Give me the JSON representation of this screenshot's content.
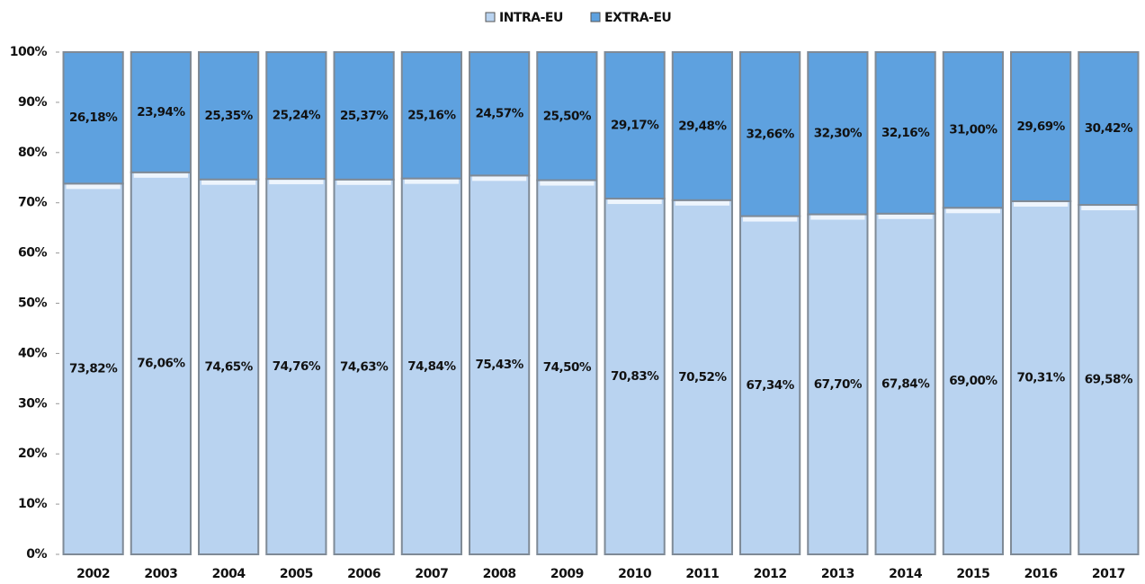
{
  "chart_data": {
    "type": "stacked_bar",
    "categories": [
      "2002",
      "2003",
      "2004",
      "2005",
      "2006",
      "2007",
      "2008",
      "2009",
      "2010",
      "2011",
      "2012",
      "2013",
      "2014",
      "2015",
      "2016",
      "2017"
    ],
    "series": [
      {
        "name": "INTRA-EU",
        "color": "#b9d3f0",
        "values": [
          73.82,
          76.06,
          74.65,
          74.76,
          74.63,
          74.84,
          75.43,
          74.5,
          70.83,
          70.52,
          67.34,
          67.7,
          67.84,
          69.0,
          70.31,
          69.58
        ],
        "value_labels": [
          "73,82%",
          "76,06%",
          "74,65%",
          "74,76%",
          "74,63%",
          "74,84%",
          "75,43%",
          "74,50%",
          "70,83%",
          "70,52%",
          "67,34%",
          "67,70%",
          "67,84%",
          "69,00%",
          "70,31%",
          "69,58%"
        ]
      },
      {
        "name": "EXTRA-EU",
        "color": "#5ea1df",
        "values": [
          26.18,
          23.94,
          25.35,
          25.24,
          25.37,
          25.16,
          24.57,
          25.5,
          29.17,
          29.48,
          32.66,
          32.3,
          32.16,
          31.0,
          29.69,
          30.42
        ],
        "value_labels": [
          "26,18%",
          "23,94%",
          "25,35%",
          "25,24%",
          "25,37%",
          "25,16%",
          "24,57%",
          "25,50%",
          "29,17%",
          "29,48%",
          "32,66%",
          "32,30%",
          "32,16%",
          "31,00%",
          "29,69%",
          "30,42%"
        ]
      }
    ],
    "ylim": [
      0,
      100
    ],
    "yticks": [
      {
        "value": 0,
        "label": "0%"
      },
      {
        "value": 10,
        "label": "10%"
      },
      {
        "value": 20,
        "label": "20%"
      },
      {
        "value": 30,
        "label": "30%"
      },
      {
        "value": 40,
        "label": "40%"
      },
      {
        "value": 50,
        "label": "50%"
      },
      {
        "value": 60,
        "label": "60%"
      },
      {
        "value": 70,
        "label": "70%"
      },
      {
        "value": 80,
        "label": "80%"
      },
      {
        "value": 90,
        "label": "90%"
      },
      {
        "value": 100,
        "label": "100%"
      }
    ],
    "legend": "top"
  }
}
